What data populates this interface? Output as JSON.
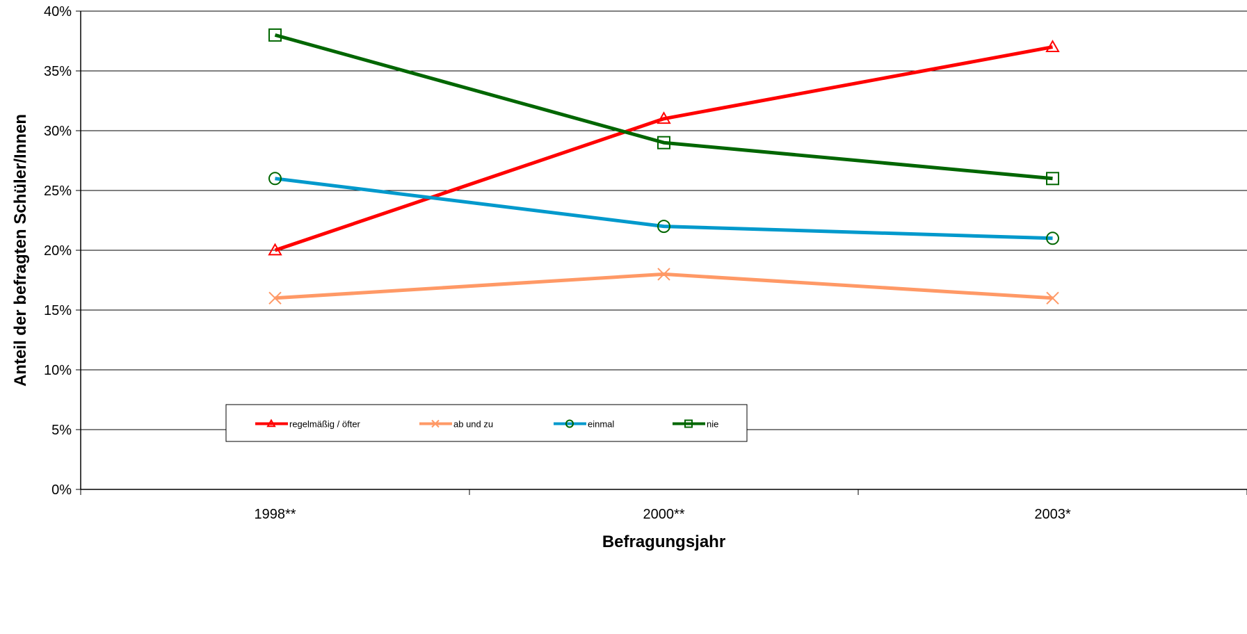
{
  "chart_data": {
    "type": "line",
    "title": "",
    "xlabel": "Befragungsjahr",
    "ylabel": "Anteil der befragten Schüler/Innen",
    "categories": [
      "1998**",
      "2000**",
      "2003*"
    ],
    "ylim": [
      0,
      40
    ],
    "yticks": [
      0,
      5,
      10,
      15,
      20,
      25,
      30,
      35,
      40
    ],
    "ytick_labels": [
      "0%",
      "5%",
      "10%",
      "15%",
      "20%",
      "25%",
      "30%",
      "35%",
      "40%"
    ],
    "grid": true,
    "legend_position": "bottom-center",
    "series": [
      {
        "name": "regelmäßig / öfter",
        "values": [
          20,
          31,
          37
        ],
        "color": "#ff0000",
        "marker": "triangle"
      },
      {
        "name": "ab und zu",
        "values": [
          16,
          18,
          16
        ],
        "color": "#ff9966",
        "marker": "x"
      },
      {
        "name": "einmal",
        "values": [
          26,
          22,
          21
        ],
        "color": "#0099cc",
        "marker": "circle"
      },
      {
        "name": "nie",
        "values": [
          38,
          29,
          26
        ],
        "color": "#006600",
        "marker": "square"
      }
    ],
    "marker_colors": {
      "triangle": "#ff0000",
      "x": "#ff9966",
      "circle": "#006600",
      "square": "#006600"
    }
  }
}
